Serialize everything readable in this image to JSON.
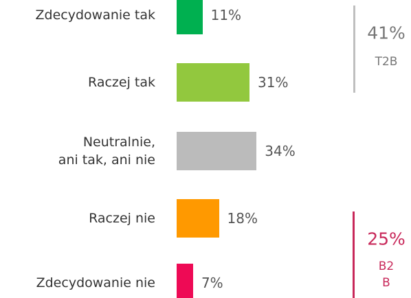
{
  "chart_data": {
    "type": "bar",
    "orientation": "horizontal",
    "categories": [
      "Zdecydowanie tak",
      "Raczej tak",
      "Neutralnie,\nani tak, ani nie",
      "Raczej nie",
      "Zdecydowanie nie"
    ],
    "values": [
      11,
      31,
      34,
      18,
      7
    ],
    "value_labels": [
      "11%",
      "31%",
      "34%",
      "18%",
      "7%"
    ],
    "colors": [
      "#00b050",
      "#92c83e",
      "#bbbbbb",
      "#ff9900",
      "#ee0a55"
    ],
    "annotations": [
      {
        "value": 41,
        "value_label": "41%",
        "label": "T2B",
        "color": "#bfbfbf",
        "text_color": "#777777"
      },
      {
        "value": 25,
        "value_label": "25%",
        "label": "B2\nB",
        "color": "#c8285a",
        "text_color": "#c8285a"
      }
    ]
  }
}
